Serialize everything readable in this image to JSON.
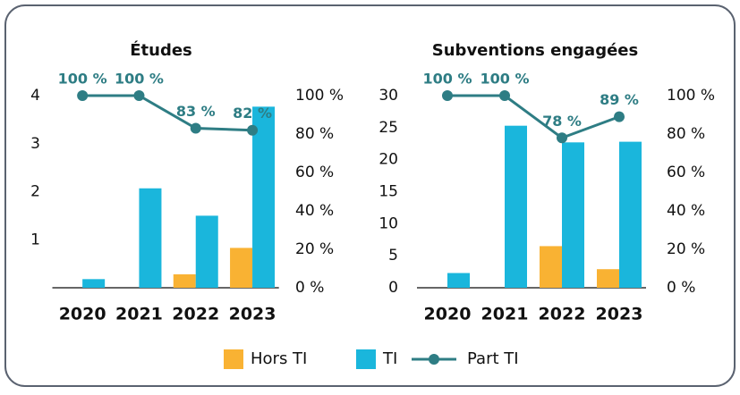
{
  "chart_data": [
    {
      "type": "bar",
      "title": "Études",
      "categories": [
        "2020",
        "2021",
        "2022",
        "2023"
      ],
      "series": [
        {
          "name": "Hors TI",
          "color": "#f9b233",
          "values": [
            0,
            0,
            0.28,
            0.83
          ]
        },
        {
          "name": "TI",
          "color": "#1ab6dc",
          "values": [
            0.18,
            2.07,
            1.5,
            3.77
          ]
        },
        {
          "name": "Part TI",
          "color": "#2e7d84",
          "type": "line",
          "axis": "y2",
          "values": [
            100,
            100,
            83,
            82
          ],
          "value_labels": [
            "100 %",
            "100 %",
            "83 %",
            "82 %"
          ]
        }
      ],
      "ylim": [
        0,
        4
      ],
      "yticks": [
        1,
        2,
        3,
        4
      ],
      "y2lim": [
        0,
        100
      ],
      "y2ticks": [
        {
          "value": 0,
          "label": "0 %"
        },
        {
          "value": 20,
          "label": "20 %"
        },
        {
          "value": 40,
          "label": "40 %"
        },
        {
          "value": 60,
          "label": "60 %"
        },
        {
          "value": 80,
          "label": "80 %"
        },
        {
          "value": 100,
          "label": "100 %"
        }
      ]
    },
    {
      "type": "bar",
      "title": "Subventions engagées",
      "categories": [
        "2020",
        "2021",
        "2022",
        "2023"
      ],
      "series": [
        {
          "color": "#f9b233",
          "values": [
            0,
            0,
            6.5,
            2.9
          ]
        },
        {
          "color": "#1ab6dc",
          "values": [
            2.3,
            25.3,
            22.7,
            22.8
          ]
        },
        {
          "color": "#2e7d84",
          "type": "line",
          "axis": "y2",
          "values": [
            100,
            100,
            78,
            89
          ],
          "value_labels": [
            "100 %",
            "100 %",
            "78 %",
            "89 %"
          ]
        }
      ],
      "ylim": [
        0,
        30
      ],
      "yticks": [
        0,
        5,
        10,
        15,
        20,
        25,
        30
      ],
      "y2lim": [
        0,
        100
      ],
      "y2ticks": [
        {
          "value": 0,
          "label": "0 %"
        },
        {
          "value": 20,
          "label": "20 %"
        },
        {
          "value": 40,
          "label": "40 %"
        },
        {
          "value": 60,
          "label": "60 %"
        },
        {
          "value": 80,
          "label": "80 %"
        },
        {
          "value": 100,
          "label": "100 %"
        }
      ]
    }
  ]
}
